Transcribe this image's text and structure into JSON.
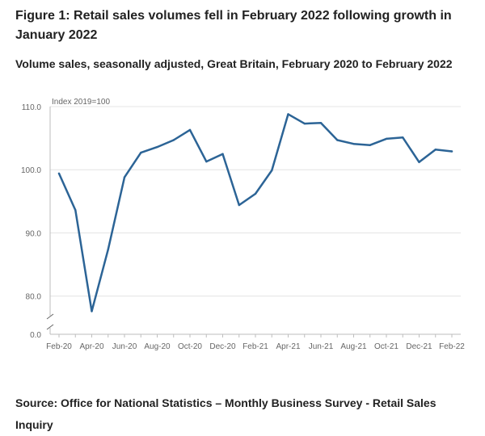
{
  "figure": {
    "title": "Figure 1: Retail sales volumes fell in February 2022 following growth in January 2022",
    "subtitle": "Volume sales, seasonally adjusted, Great Britain, February 2020 to February 2022",
    "source": "Source: Office for National Statistics – Monthly Business Survey - Retail Sales Inquiry"
  },
  "colors": {
    "line": "#2c6496",
    "grid": "#e4e4e4",
    "axis": "#bebebe",
    "text": "#666666"
  },
  "chart_data": {
    "type": "line",
    "unit_label": "Index 2019=100",
    "x": [
      "Feb-20",
      "Mar-20",
      "Apr-20",
      "May-20",
      "Jun-20",
      "Jul-20",
      "Aug-20",
      "Sep-20",
      "Oct-20",
      "Nov-20",
      "Dec-20",
      "Jan-21",
      "Feb-21",
      "Mar-21",
      "Apr-21",
      "May-21",
      "Jun-21",
      "Jul-21",
      "Aug-21",
      "Sep-21",
      "Oct-21",
      "Nov-21",
      "Dec-21",
      "Jan-22",
      "Feb-22"
    ],
    "x_tick_labels": [
      "Feb-20",
      "Apr-20",
      "Jun-20",
      "Aug-20",
      "Oct-20",
      "Dec-20",
      "Feb-21",
      "Apr-21",
      "Jun-21",
      "Aug-21",
      "Oct-21",
      "Dec-21",
      "Feb-22"
    ],
    "series": [
      {
        "values": [
          99.4,
          93.6,
          77.6,
          87.4,
          98.8,
          102.7,
          103.6,
          104.7,
          106.3,
          101.3,
          102.5,
          94.4,
          96.2,
          99.9,
          108.8,
          107.3,
          107.4,
          104.7,
          104.1,
          103.9,
          104.9,
          105.1,
          101.2,
          103.2,
          102.9
        ]
      }
    ],
    "y_ticks": [
      0,
      80,
      90,
      100,
      110
    ],
    "y_tick_labels": [
      "0.0",
      "80.0",
      "90.0",
      "100.0",
      "110.0"
    ],
    "ylim": [
      76.0,
      110.0
    ],
    "axis_break": true,
    "grid": true,
    "legend": "none"
  }
}
